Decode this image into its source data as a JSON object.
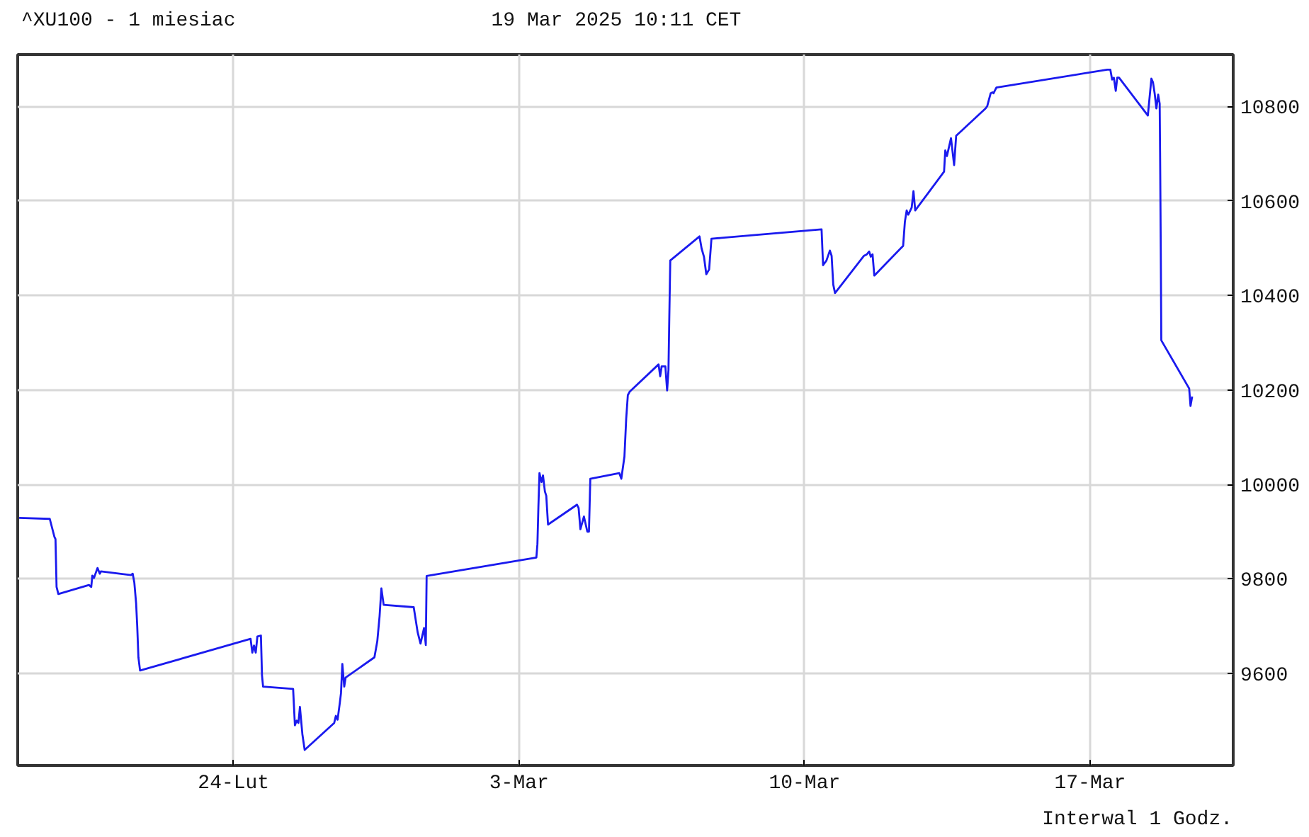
{
  "chart_data": {
    "type": "line",
    "title": "^XU100 - 1 miesiac",
    "subtitle": "19 Mar 2025 10:11 CET",
    "annotations": [
      "Interwal 1 Godz."
    ],
    "xlim": [
      "2025-02-18T16:58",
      "2025-03-20T12:14"
    ],
    "ylim": [
      9405,
      10910
    ],
    "xticks": [
      {
        "value": "2025-02-24",
        "label": "24-Lut"
      },
      {
        "value": "2025-03-03",
        "label": "3-Mar"
      },
      {
        "value": "2025-03-10",
        "label": "10-Mar"
      },
      {
        "value": "2025-03-17",
        "label": "17-Mar"
      }
    ],
    "yticks": [
      9600,
      9800,
      10000,
      10200,
      10400,
      10600,
      10800
    ],
    "grid": true,
    "series": [
      {
        "color": "#1a1aee",
        "x": [
          "2025-02-18T17:50",
          "2025-02-19T11:50",
          "2025-02-19T14:34",
          "2025-02-19T15:12",
          "2025-02-19T15:50",
          "2025-02-19T16:53",
          "2025-02-20T10:53",
          "2025-02-20T12:14",
          "2025-02-20T12:53",
          "2025-02-20T13:50",
          "2025-02-20T15:55",
          "2025-02-20T17:17",
          "2025-02-20T17:55",
          "2025-02-21T11:36",
          "2025-02-21T12:38",
          "2025-02-21T13:36",
          "2025-02-21T14:38",
          "2025-02-21T15:17",
          "2025-02-21T16:00",
          "2025-02-21T16:58",
          "2025-02-24T10:00",
          "2025-02-24T11:02",
          "2025-02-24T12:00",
          "2025-02-24T13:02",
          "2025-02-24T14:00",
          "2025-02-24T16:05",
          "2025-02-24T16:43",
          "2025-02-24T17:22",
          "2025-02-25T11:02",
          "2025-02-25T12:05",
          "2025-02-25T13:07",
          "2025-02-25T14:10",
          "2025-02-25T15:02",
          "2025-02-25T16:29",
          "2025-02-25T17:50",
          "2025-02-26T11:12",
          "2025-02-26T12:10",
          "2025-02-26T13:12",
          "2025-02-26T14:34",
          "2025-02-26T15:12",
          "2025-02-26T16:00",
          "2025-02-26T17:07",
          "2025-02-26T17:55",
          "2025-02-27T10:53",
          "2025-02-27T12:34",
          "2025-02-27T13:55",
          "2025-02-27T14:58",
          "2025-02-27T16:19",
          "2025-02-28T10:00",
          "2025-02-28T12:19",
          "2025-02-28T14:00",
          "2025-02-28T16:05",
          "2025-02-28T17:07",
          "2025-02-28T17:36",
          "2025-03-03T10:10",
          "2025-03-03T10:48",
          "2025-03-03T11:22",
          "2025-03-03T12:00",
          "2025-03-03T13:12",
          "2025-03-03T14:05",
          "2025-03-03T15:12",
          "2025-03-03T16:00",
          "2025-03-03T17:02",
          "2025-03-04T10:05",
          "2025-03-04T11:02",
          "2025-03-04T12:05",
          "2025-03-04T14:10",
          "2025-03-04T16:10",
          "2025-03-04T17:07",
          "2025-03-04T17:55",
          "2025-03-05T10:58",
          "2025-03-05T12:10",
          "2025-03-05T14:00",
          "2025-03-05T15:02",
          "2025-03-05T16:00",
          "2025-03-05T17:02",
          "2025-03-06T10:05",
          "2025-03-06T11:02",
          "2025-03-06T11:55",
          "2025-03-06T14:05",
          "2025-03-06T15:07",
          "2025-03-06T15:55",
          "2025-03-06T16:24",
          "2025-03-06T16:58",
          "2025-03-07T10:10",
          "2025-03-07T11:26",
          "2025-03-07T12:48",
          "2025-03-07T14:10",
          "2025-03-07T15:50",
          "2025-03-07T17:12",
          "2025-03-10T10:00",
          "2025-03-10T10:53",
          "2025-03-10T12:53",
          "2025-03-10T14:53",
          "2025-03-10T15:55",
          "2025-03-10T16:53",
          "2025-03-10T17:55",
          "2025-03-11T10:58",
          "2025-03-11T12:38",
          "2025-03-11T14:00",
          "2025-03-11T14:58",
          "2025-03-11T16:00",
          "2025-03-11T17:02",
          "2025-03-12T10:00",
          "2025-03-12T11:02",
          "2025-03-12T12:05",
          "2025-03-12T13:02",
          "2025-03-12T15:02",
          "2025-03-12T16:05",
          "2025-03-12T17:07",
          "2025-03-13T10:05",
          "2025-03-13T10:48",
          "2025-03-13T11:46",
          "2025-03-13T14:10",
          "2025-03-13T16:00",
          "2025-03-13T17:12",
          "2025-03-14T10:34",
          "2025-03-14T11:31",
          "2025-03-14T13:31",
          "2025-03-14T14:34",
          "2025-03-14T15:12",
          "2025-03-14T16:53",
          "2025-03-17T10:05",
          "2025-03-17T11:55",
          "2025-03-17T12:58",
          "2025-03-17T14:00",
          "2025-03-17T15:07",
          "2025-03-17T16:00",
          "2025-03-17T17:02",
          "2025-03-18T10:00",
          "2025-03-18T12:05",
          "2025-03-18T13:02",
          "2025-03-18T14:00",
          "2025-03-18T15:02",
          "2025-03-18T16:05",
          "2025-03-18T16:58",
          "2025-03-18T17:12",
          "2025-03-18T17:36",
          "2025-03-18T17:55",
          "2025-03-19T10:19",
          "2025-03-19T11:07",
          "2025-03-19T12:05"
        ],
        "values": [
          9929,
          9927,
          9889,
          9884,
          9783,
          9768,
          9787,
          9783,
          9807,
          9802,
          9823,
          9811,
          9816,
          9808,
          9811,
          9792,
          9749,
          9701,
          9634,
          9606,
          9673,
          9644,
          9659,
          9644,
          9678,
          9680,
          9596,
          9572,
          9567,
          9490,
          9500,
          9495,
          9529,
          9471,
          9438,
          9495,
          9510,
          9502,
          9539,
          9558,
          9620,
          9572,
          9591,
          9634,
          9668,
          9721,
          9780,
          9745,
          9740,
          9687,
          9663,
          9696,
          9660,
          9806,
          9845,
          9874,
          9952,
          10024,
          10005,
          10019,
          9985,
          9976,
          9915,
          9957,
          9950,
          9905,
          9932,
          9900,
          9900,
          10012,
          10024,
          10012,
          10059,
          10139,
          10189,
          10196,
          10254,
          10229,
          10250,
          10250,
          10199,
          10242,
          10353,
          10474,
          10525,
          10499,
          10482,
          10445,
          10455,
          10520,
          10540,
          10464,
          10474,
          10495,
          10484,
          10423,
          10405,
          10484,
          10487,
          10493,
          10482,
          10487,
          10442,
          10505,
          10556,
          10580,
          10571,
          10586,
          10621,
          10580,
          10662,
          10707,
          10695,
          10733,
          10676,
          10738,
          10796,
          10801,
          10828,
          10830,
          10828,
          10840,
          10878,
          10878,
          10857,
          10861,
          10833,
          10861,
          10861,
          10781,
          10859,
          10851,
          10828,
          10796,
          10825,
          10806,
          10704,
          10501,
          10305,
          10203,
          10166,
          10186
        ]
      }
    ]
  }
}
